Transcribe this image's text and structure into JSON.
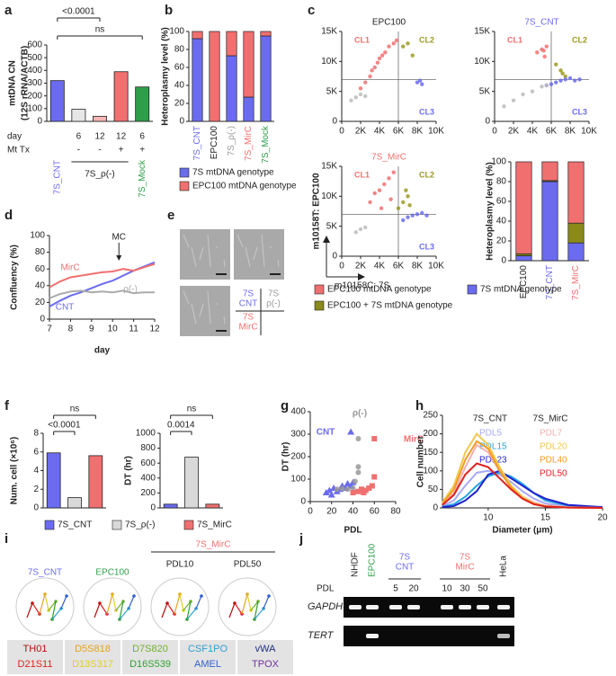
{
  "chart_data": [
    {
      "panel": "a",
      "type": "bar",
      "y_label": [
        "mtDNA CN",
        "(12S rRNA/ACTB)"
      ],
      "values": [
        320,
        95,
        40,
        390,
        270
      ],
      "colors": [
        "#6b6bf0",
        "#e6e6e6",
        "#f7b5b5",
        "#f07070",
        "#2e9e4a"
      ],
      "ylim": [
        0,
        600
      ],
      "yticks": [
        0,
        100,
        200,
        300,
        400,
        500,
        600
      ],
      "rows": [
        {
          "label": "day",
          "cells": [
            null,
            "6",
            "12",
            "12",
            "6"
          ]
        },
        {
          "label": "Mt Tx",
          "cells": [
            null,
            "-",
            "-",
            "+",
            "+"
          ]
        }
      ],
      "groups": [
        {
          "text": "7S_CNT",
          "color": "#6b6bf0"
        },
        {
          "text": "7S_ρ(-)",
          "color": "#222222"
        },
        {
          "text": "7S_Mock",
          "color": "#2e9e4a"
        }
      ],
      "annotations": [
        "<0.0001",
        "ns"
      ]
    },
    {
      "panel": "b",
      "type": "stacked_bar",
      "y_label": "Heteroplasmy level (%)",
      "categories": [
        "7S_CNT",
        "EPC100",
        "7S_ρ(-)",
        "7S_MirC",
        "7S_Mock"
      ],
      "category_colors": [
        "#6b6bf0",
        "#222222",
        "#999999",
        "#f07070",
        "#2e9e4a"
      ],
      "series": [
        {
          "name": "7S mtDNA genotype",
          "color": "#6b6bf0",
          "values": [
            92,
            0,
            73,
            27,
            95
          ]
        },
        {
          "name": "EPC100 mtDNA genotype",
          "color": "#f07070",
          "values": [
            8,
            100,
            27,
            73,
            5
          ]
        }
      ],
      "ylim": [
        0,
        100
      ],
      "yticks": [
        0,
        20,
        40,
        60,
        80,
        100
      ]
    },
    {
      "panel": "c",
      "type": "scatter",
      "title": "EPC100",
      "title_color": "#222222",
      "x_threshold": 6000,
      "y_threshold": 7000,
      "xlim": [
        0,
        10000
      ],
      "ylim": [
        0,
        15000
      ],
      "xticks": [
        0,
        {
          "value": 2000,
          "label": "2K"
        },
        {
          "value": 4000,
          "label": "4K"
        },
        {
          "value": 6000,
          "label": "6K"
        },
        {
          "value": 8000,
          "label": "8K"
        },
        {
          "value": 10000,
          "label": "10K"
        }
      ],
      "yticks": [
        0,
        {
          "value": 5000,
          "label": "5K"
        },
        {
          "value": 10000,
          "label": "10K"
        },
        {
          "value": 15000,
          "label": "15K"
        }
      ],
      "series": [
        {
          "name": "CL1",
          "color": "#f07070",
          "x": [
            2000,
            2500,
            3000,
            3200,
            3500,
            3800,
            4000,
            4300,
            4600,
            5000,
            5500,
            5800
          ],
          "y": [
            5500,
            6500,
            7500,
            8500,
            9000,
            9800,
            10500,
            11000,
            11500,
            12500,
            13000,
            13500
          ]
        },
        {
          "name": "CL2",
          "color": "#9a9a20",
          "x": [
            6500,
            7000,
            7500
          ],
          "y": [
            12500,
            13000,
            11000
          ]
        },
        {
          "name": "CL3",
          "color": "#6b6bf0",
          "x": [
            8000,
            8300,
            8500
          ],
          "y": [
            6500,
            6800,
            6200
          ]
        },
        {
          "color": "#bbbbbb",
          "x": [
            1000,
            1500,
            2000,
            2500
          ],
          "y": [
            3500,
            4000,
            4500,
            4200
          ]
        }
      ]
    },
    {
      "type": "scatter",
      "title": "7S_CNT",
      "title_color": "#6b6bf0",
      "x_threshold": 6000,
      "y_threshold": 7000,
      "xlim": [
        0,
        10000
      ],
      "ylim": [
        0,
        15000
      ],
      "xticks": [
        0,
        {
          "value": 2000,
          "label": "2K"
        },
        {
          "value": 4000,
          "label": "4K"
        },
        {
          "value": 6000,
          "label": "6K"
        },
        {
          "value": 8000,
          "label": "8K"
        },
        {
          "value": 10000,
          "label": "10K"
        }
      ],
      "yticks": [
        0,
        {
          "value": 5000,
          "label": "5K"
        },
        {
          "value": 10000,
          "label": "10K"
        },
        {
          "value": 15000,
          "label": "15K"
        }
      ],
      "series": [
        {
          "name": "CL1",
          "color": "#f07070",
          "x": [
            4500,
            5000,
            5200,
            5500,
            5300
          ],
          "y": [
            11500,
            12000,
            11800,
            12500,
            10800
          ]
        },
        {
          "name": "CL2",
          "color": "#9a9a20",
          "x": [
            6500,
            7000,
            7200,
            7500
          ],
          "y": [
            9500,
            8500,
            8000,
            7500
          ]
        },
        {
          "name": "CL3",
          "color": "#6b6bf0",
          "x": [
            5500,
            6000,
            6500,
            7000,
            7500,
            8000,
            8500,
            9000
          ],
          "y": [
            6000,
            6200,
            6500,
            6800,
            7000,
            7200,
            6800,
            7000
          ]
        },
        {
          "color": "#bbbbbb",
          "x": [
            1000,
            2000,
            3000,
            4000,
            5000,
            5500
          ],
          "y": [
            2500,
            3500,
            4500,
            5000,
            5800,
            6000
          ]
        }
      ]
    },
    {
      "type": "scatter",
      "title": "7S_MirC",
      "title_color": "#f07070",
      "x_label": "m10158C: 7S",
      "y_label": "m10158T: EPC100",
      "x_threshold": 6000,
      "y_threshold": 7000,
      "xlim": [
        0,
        10000
      ],
      "ylim": [
        0,
        15000
      ],
      "xticks": [
        0,
        {
          "value": 2000,
          "label": "2K"
        },
        {
          "value": 4000,
          "label": "4K"
        },
        {
          "value": 6000,
          "label": "6K"
        },
        {
          "value": 8000,
          "label": "8K"
        },
        {
          "value": 10000,
          "label": "10K"
        }
      ],
      "yticks": [
        0,
        {
          "value": 5000,
          "label": "5K"
        },
        {
          "value": 10000,
          "label": "10K"
        },
        {
          "value": 15000,
          "label": "15K"
        }
      ],
      "series": [
        {
          "name": "CL1",
          "color": "#f07070",
          "x": [
            3000,
            3500,
            4000,
            4500,
            5000,
            5500,
            4200,
            5200
          ],
          "y": [
            9000,
            10500,
            11000,
            12000,
            13000,
            14000,
            8000,
            9500
          ]
        },
        {
          "name": "CL2",
          "color": "#9a9a20",
          "x": [
            6000,
            6500,
            7000,
            6800,
            7200
          ],
          "y": [
            8000,
            9000,
            10000,
            11000,
            8500
          ]
        },
        {
          "name": "CL3",
          "color": "#6b6bf0",
          "x": [
            6500,
            7000,
            7500,
            8000,
            8500,
            9000
          ],
          "y": [
            6000,
            6500,
            6800,
            7000,
            7200,
            6800
          ]
        },
        {
          "color": "#bbbbbb",
          "x": [
            1500,
            2000,
            2500
          ],
          "y": [
            4000,
            4500,
            4800
          ]
        }
      ]
    },
    {
      "type": "stacked_bar",
      "y_label": "Heteroplasmy level (%)",
      "categories": [
        "EPC100",
        "7S_CNT",
        "7S_MirC"
      ],
      "category_colors": [
        "#222222",
        "#6b6bf0",
        "#f07070"
      ],
      "series": [
        {
          "name": "7S mtDNA genotype",
          "color": "#6b6bf0",
          "values": [
            5,
            80,
            18
          ]
        },
        {
          "name": "EPC100 + 7S mtDNA genotype",
          "color": "#8a8a1a",
          "values": [
            2,
            1,
            20
          ]
        },
        {
          "name": "EPC100 mtDNA genotype",
          "color": "#f07070",
          "values": [
            93,
            19,
            62
          ]
        }
      ],
      "ylim": [
        0,
        100
      ],
      "yticks": [
        0,
        20,
        40,
        60,
        80,
        100
      ]
    },
    {
      "panel": "d",
      "type": "line",
      "x_label": "day",
      "y_label": "Confluency (%)",
      "x": [
        7,
        7.5,
        8,
        8.5,
        9,
        9.5,
        10,
        10.5,
        11,
        11.5,
        12
      ],
      "xlim": [
        7,
        12
      ],
      "xticks": [
        7,
        8,
        9,
        10,
        11,
        12
      ],
      "ylim": [
        0,
        100
      ],
      "yticks": [
        0,
        20,
        40,
        60,
        80,
        100
      ],
      "series": [
        {
          "name": "CNT",
          "color": "#6b6bf0",
          "values": [
            15,
            22,
            28,
            32,
            37,
            42,
            46,
            52,
            58,
            63,
            68
          ]
        },
        {
          "name": "MirC",
          "color": "#f07070",
          "values": [
            38,
            45,
            50,
            52,
            54,
            56,
            57,
            60,
            58,
            62,
            66
          ]
        },
        {
          "name": "ρ(-)",
          "color": "#aaaaaa",
          "values": [
            25,
            30,
            33,
            34,
            32,
            33,
            32,
            34,
            31,
            32,
            32
          ]
        }
      ],
      "annotation": {
        "text": "MC",
        "x": 10.3
      }
    },
    {
      "panel": "f",
      "type": "bar",
      "y_label": "Num. cell (×10⁶)",
      "values": [
        5.9,
        1.1,
        5.6
      ],
      "colors": [
        "#6b6bf0",
        "#d9d9d9",
        "#f07070"
      ],
      "ylim": [
        0,
        8
      ],
      "yticks": [
        0,
        2,
        4,
        6,
        8
      ],
      "annotations": [
        "<0.0001",
        "ns"
      ],
      "legend": [
        "7S_CNT",
        "7S_ρ(-)",
        "7S_MirC"
      ]
    },
    {
      "type": "bar",
      "y_label": "DT (hr)",
      "values": [
        50,
        680,
        50
      ],
      "colors": [
        "#6b6bf0",
        "#d9d9d9",
        "#f07070"
      ],
      "ylim": [
        0,
        1000
      ],
      "yticks": [
        0,
        200,
        400,
        600,
        800,
        1000
      ],
      "annotations": [
        "0.0014",
        "ns"
      ]
    },
    {
      "panel": "g",
      "type": "scatter",
      "x_label": "PDL",
      "y_label": "DT (hr)",
      "xlim": [
        0,
        80
      ],
      "xticks": [
        0,
        20,
        40,
        60,
        80
      ],
      "ylim": [
        0,
        400
      ],
      "yticks": [
        0,
        100,
        200,
        300,
        400
      ],
      "series": [
        {
          "name": "CNT",
          "color": "#6b6bf0",
          "marker": "triangle",
          "x": [
            15,
            18,
            20,
            22,
            25,
            28,
            30,
            33,
            35,
            38,
            40,
            38
          ],
          "y": [
            40,
            50,
            30,
            60,
            45,
            55,
            70,
            60,
            80,
            70,
            85,
            310
          ]
        },
        {
          "name": "ρ(-)",
          "color": "#999999",
          "marker": "circle",
          "x": [
            25,
            30,
            35,
            40,
            42,
            45,
            45,
            45
          ],
          "y": [
            55,
            58,
            55,
            60,
            90,
            130,
            155,
            280
          ]
        },
        {
          "name": "MirC",
          "color": "#f07070",
          "marker": "square",
          "x": [
            40,
            45,
            48,
            50,
            52,
            55,
            58,
            60,
            60
          ],
          "y": [
            40,
            45,
            55,
            40,
            50,
            60,
            70,
            110,
            280
          ]
        }
      ]
    },
    {
      "panel": "h",
      "type": "line",
      "x_label": "Diameter (μm)",
      "y_label": "Cell number",
      "x": [
        6,
        7,
        8,
        9,
        10,
        11,
        12,
        13,
        14,
        15,
        17,
        20
      ],
      "xlim": [
        6,
        20
      ],
      "xticks": [
        10,
        15,
        20
      ],
      "ylim": [
        0,
        250
      ],
      "yticks": [
        0,
        50,
        100,
        150,
        200,
        250
      ],
      "legend_titles": [
        "7S_CNT",
        "7S_MirC"
      ],
      "series": [
        {
          "name": "PDL5",
          "color": "#a9a9f5",
          "values": [
            5,
            20,
            60,
            95,
            100,
            90,
            70,
            45,
            25,
            12,
            4,
            1
          ]
        },
        {
          "name": "PDL15",
          "color": "#2aa6e0",
          "values": [
            3,
            10,
            30,
            60,
            85,
            95,
            85,
            65,
            40,
            20,
            6,
            1
          ]
        },
        {
          "name": "PDL23",
          "color": "#2020d0",
          "values": [
            2,
            5,
            20,
            45,
            90,
            100,
            80,
            60,
            40,
            25,
            8,
            2
          ]
        },
        {
          "name": "PDL7",
          "color": "#f4b0b0",
          "values": [
            10,
            40,
            110,
            170,
            150,
            100,
            60,
            30,
            15,
            6,
            2,
            0
          ]
        },
        {
          "name": "PDL20",
          "color": "#f0c850",
          "values": [
            15,
            60,
            150,
            200,
            170,
            110,
            60,
            30,
            12,
            5,
            1,
            0
          ]
        },
        {
          "name": "PDL40",
          "color": "#f59a20",
          "values": [
            12,
            50,
            130,
            180,
            160,
            100,
            55,
            25,
            10,
            4,
            1,
            0
          ]
        },
        {
          "name": "PDL50",
          "color": "#e02020",
          "values": [
            8,
            35,
            90,
            120,
            110,
            80,
            50,
            25,
            10,
            4,
            1,
            0
          ]
        }
      ]
    }
  ],
  "panel_e": {
    "panel": "e",
    "cells": [
      {
        "lines": [
          "7S",
          "CNT"
        ],
        "color": "#6b6bf0"
      },
      {
        "lines": [
          "7S",
          "ρ(-)"
        ],
        "color": "#999999"
      },
      {
        "lines": [
          "7S",
          "MirC"
        ],
        "color": "#f07070"
      }
    ]
  },
  "panel_i": {
    "panel": "i",
    "headers": [
      {
        "text": "7S_CNT",
        "color": "#6b6bf0"
      },
      {
        "text": "EPC100",
        "color": "#2e9e4a"
      }
    ],
    "mirc": {
      "text": "7S_MirC",
      "color": "#f07070",
      "samples": [
        "PDL10",
        "PDL50"
      ]
    },
    "loci": [
      {
        "name": "TH01",
        "color": "#b01010"
      },
      {
        "name": "D21S11",
        "color": "#e02020"
      },
      {
        "name": "D5S818",
        "color": "#e8a020"
      },
      {
        "name": "D13S317",
        "color": "#e0d020"
      },
      {
        "name": "D7S820",
        "color": "#70b030"
      },
      {
        "name": "D16S539",
        "color": "#30a030"
      },
      {
        "name": "CSF1PO",
        "color": "#30a0d0"
      },
      {
        "name": "AMEL",
        "color": "#3060d0"
      },
      {
        "name": "vWA",
        "color": "#203080"
      },
      {
        "name": "TPOX",
        "color": "#7030a0"
      }
    ]
  },
  "panel_j": {
    "panel": "j",
    "lanes": [
      {
        "text": "NHDF",
        "color": "#222222"
      },
      {
        "text": "EPC100",
        "color": "#2e9e4a"
      }
    ],
    "groups": [
      {
        "lines": [
          "7S",
          "CNT"
        ],
        "color": "#6b6bf0"
      },
      {
        "lines": [
          "7S",
          "MirC"
        ],
        "color": "#f07070"
      }
    ],
    "last_lane": "HeLa",
    "pdl_label": "PDL",
    "pdl": [
      "5",
      "20",
      "10",
      "30",
      "50"
    ],
    "genes": [
      "GAPDH",
      "TERT"
    ]
  }
}
